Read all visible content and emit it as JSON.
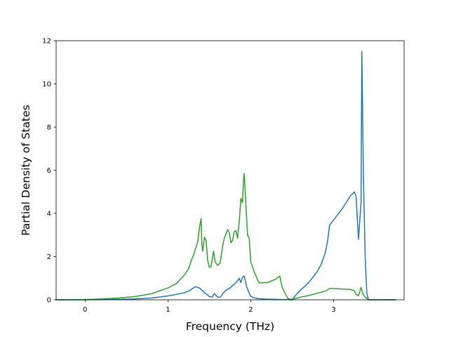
{
  "chart_data": {
    "type": "line",
    "title": "",
    "xlabel": "Frequency (THz)",
    "ylabel": "Partial Density of States",
    "xlim": [
      -0.35,
      3.85
    ],
    "ylim": [
      0,
      12
    ],
    "xticks": [
      0,
      1,
      2,
      3
    ],
    "yticks": [
      0,
      2,
      4,
      6,
      8,
      10,
      12
    ],
    "xtick_labels": [
      "0",
      "1",
      "2",
      "3"
    ],
    "ytick_labels": [
      "0",
      "2",
      "4",
      "6",
      "8",
      "10",
      "12"
    ],
    "grid": false,
    "series": [
      {
        "color": "#1f77b4",
        "x": [
          -0.35,
          -0.2,
          0.0,
          0.2,
          0.4,
          0.6,
          0.8,
          1.0,
          1.1,
          1.2,
          1.25,
          1.28,
          1.33,
          1.38,
          1.42,
          1.45,
          1.48,
          1.5,
          1.53,
          1.56,
          1.6,
          1.63,
          1.66,
          1.7,
          1.75,
          1.8,
          1.84,
          1.86,
          1.88,
          1.9,
          1.92,
          1.95,
          1.98,
          2.0,
          2.05,
          2.1,
          2.2,
          2.3,
          2.35,
          2.4,
          2.45,
          2.5,
          2.55,
          2.6,
          2.7,
          2.8,
          2.85,
          2.9,
          2.93,
          2.95,
          3.0,
          3.1,
          3.15,
          3.2,
          3.25,
          3.27,
          3.3,
          3.33,
          3.34,
          3.36,
          3.38,
          3.4,
          3.42,
          3.5,
          3.6,
          3.75
        ],
        "values": [
          0,
          0,
          0,
          0.01,
          0.02,
          0.04,
          0.08,
          0.18,
          0.25,
          0.33,
          0.4,
          0.48,
          0.6,
          0.55,
          0.4,
          0.3,
          0.22,
          0.15,
          0.12,
          0.28,
          0.12,
          0.12,
          0.28,
          0.45,
          0.55,
          0.72,
          0.88,
          1.0,
          0.8,
          1.05,
          1.1,
          0.6,
          0.3,
          0.15,
          0.08,
          0.05,
          0.03,
          0.02,
          0.01,
          0.01,
          0.01,
          0.0,
          0.25,
          0.45,
          0.8,
          1.3,
          1.65,
          2.2,
          2.8,
          3.45,
          3.7,
          4.2,
          4.5,
          4.8,
          5.0,
          4.8,
          2.8,
          4.5,
          11.5,
          5.5,
          2.0,
          0.3,
          0.0,
          0.0,
          0.0,
          0.0
        ]
      },
      {
        "color": "#2ca02c",
        "x": [
          -0.35,
          -0.2,
          0.0,
          0.2,
          0.4,
          0.6,
          0.8,
          1.0,
          1.1,
          1.2,
          1.25,
          1.28,
          1.32,
          1.36,
          1.38,
          1.4,
          1.41,
          1.42,
          1.44,
          1.46,
          1.48,
          1.5,
          1.52,
          1.55,
          1.57,
          1.6,
          1.63,
          1.66,
          1.68,
          1.72,
          1.74,
          1.76,
          1.78,
          1.8,
          1.82,
          1.84,
          1.86,
          1.88,
          1.9,
          1.91,
          1.92,
          1.94,
          1.96,
          1.98,
          2.0,
          2.05,
          2.1,
          2.2,
          2.3,
          2.33,
          2.35,
          2.38,
          2.42,
          2.45,
          2.5,
          2.6,
          2.7,
          2.8,
          2.9,
          2.95,
          3.0,
          3.1,
          3.2,
          3.25,
          3.27,
          3.3,
          3.33,
          3.35,
          3.38,
          3.42,
          3.5,
          3.6,
          3.75
        ],
        "values": [
          0,
          0,
          0.01,
          0.04,
          0.08,
          0.15,
          0.28,
          0.55,
          0.75,
          1.15,
          1.45,
          1.8,
          2.2,
          2.7,
          3.35,
          3.75,
          2.5,
          2.25,
          2.9,
          2.75,
          1.8,
          1.5,
          1.55,
          2.25,
          1.75,
          1.6,
          1.7,
          2.5,
          2.85,
          3.25,
          3.1,
          2.65,
          2.75,
          3.15,
          3.2,
          2.85,
          3.6,
          4.7,
          4.5,
          5.4,
          5.85,
          4.5,
          3.0,
          2.85,
          1.75,
          1.2,
          0.78,
          0.8,
          0.95,
          1.05,
          1.1,
          0.55,
          0.25,
          0.05,
          0.02,
          0.12,
          0.2,
          0.3,
          0.4,
          0.52,
          0.52,
          0.5,
          0.48,
          0.42,
          0.25,
          0.18,
          0.58,
          0.3,
          0.12,
          0.0,
          0.0,
          0.0,
          0.0
        ]
      }
    ]
  }
}
